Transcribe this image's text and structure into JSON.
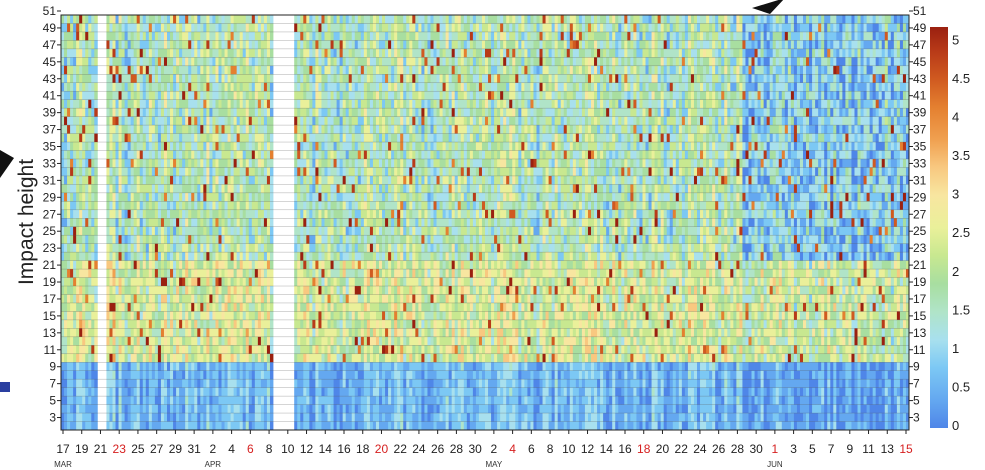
{
  "chart_data": {
    "type": "heatmap",
    "ylabel": "Impact height",
    "y_ticks": [
      "3",
      "5",
      "7",
      "9",
      "11",
      "13",
      "15",
      "17",
      "19",
      "21",
      "23",
      "25",
      "27",
      "29",
      "31",
      "33",
      "35",
      "37",
      "39",
      "41",
      "43",
      "45",
      "47",
      "49",
      "51"
    ],
    "y_range": [
      2,
      51
    ],
    "x_ticks": [
      {
        "label": "17",
        "color": "#222222"
      },
      {
        "label": "19",
        "color": "#222222"
      },
      {
        "label": "21",
        "color": "#222222"
      },
      {
        "label": "23",
        "color": "#d62020"
      },
      {
        "label": "25",
        "color": "#222222"
      },
      {
        "label": "27",
        "color": "#222222"
      },
      {
        "label": "29",
        "color": "#222222"
      },
      {
        "label": "31",
        "color": "#222222"
      },
      {
        "label": "2",
        "color": "#222222"
      },
      {
        "label": "4",
        "color": "#222222"
      },
      {
        "label": "6",
        "color": "#d62020"
      },
      {
        "label": "8",
        "color": "#222222"
      },
      {
        "label": "10",
        "color": "#222222"
      },
      {
        "label": "12",
        "color": "#222222"
      },
      {
        "label": "14",
        "color": "#222222"
      },
      {
        "label": "16",
        "color": "#222222"
      },
      {
        "label": "18",
        "color": "#222222"
      },
      {
        "label": "20",
        "color": "#d62020"
      },
      {
        "label": "22",
        "color": "#222222"
      },
      {
        "label": "24",
        "color": "#222222"
      },
      {
        "label": "26",
        "color": "#222222"
      },
      {
        "label": "28",
        "color": "#222222"
      },
      {
        "label": "30",
        "color": "#222222"
      },
      {
        "label": "2",
        "color": "#222222"
      },
      {
        "label": "4",
        "color": "#d62020"
      },
      {
        "label": "6",
        "color": "#222222"
      },
      {
        "label": "8",
        "color": "#222222"
      },
      {
        "label": "10",
        "color": "#222222"
      },
      {
        "label": "12",
        "color": "#222222"
      },
      {
        "label": "14",
        "color": "#222222"
      },
      {
        "label": "16",
        "color": "#222222"
      },
      {
        "label": "18",
        "color": "#d62020"
      },
      {
        "label": "20",
        "color": "#222222"
      },
      {
        "label": "22",
        "color": "#222222"
      },
      {
        "label": "24",
        "color": "#222222"
      },
      {
        "label": "26",
        "color": "#222222"
      },
      {
        "label": "28",
        "color": "#222222"
      },
      {
        "label": "30",
        "color": "#222222"
      },
      {
        "label": "1",
        "color": "#d62020"
      },
      {
        "label": "3",
        "color": "#222222"
      },
      {
        "label": "5",
        "color": "#222222"
      },
      {
        "label": "7",
        "color": "#222222"
      },
      {
        "label": "9",
        "color": "#222222"
      },
      {
        "label": "11",
        "color": "#222222"
      },
      {
        "label": "13",
        "color": "#222222"
      },
      {
        "label": "15",
        "color": "#d62020"
      }
    ],
    "months": [
      "MAR",
      "APR",
      "MAY",
      "JUN"
    ],
    "colorbar": {
      "ticks": [
        "0",
        "0.5",
        "1",
        "1.5",
        "2",
        "2.5",
        "3",
        "3.5",
        "4",
        "4.5",
        "5"
      ],
      "range": [
        0,
        5.2
      ],
      "colors": [
        "#4f86e8",
        "#64a8f0",
        "#7cc8f4",
        "#a8e0ee",
        "#b0e4c8",
        "#a8dea0",
        "#c8e890",
        "#eaf09a",
        "#f8e6a0",
        "#f8c880",
        "#f0a050",
        "#e48030",
        "#d05a20",
        "#b83a18",
        "#9a2010"
      ]
    },
    "grid": false,
    "legend": "colorbar right",
    "note_values": "Per-day rows of the heatmap are unlabeled; the overall distribution reads as low values (0–1) below height ~10, 1–3 in the middle band and scattered 3–5 streaks above height ~10."
  }
}
